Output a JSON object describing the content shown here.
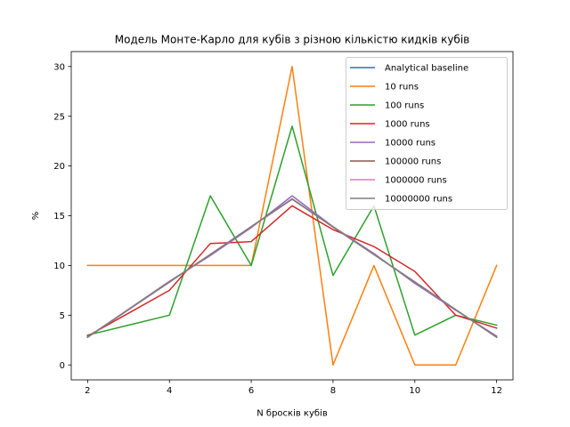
{
  "chart_data": {
    "type": "line",
    "title": "Модель Монте-Карло для кубів з різною кількістю кидків кубів",
    "xlabel": "N бросків кубів",
    "ylabel": "%",
    "xlim": [
      1.6,
      12.4
    ],
    "ylim": [
      -1.5,
      31.5
    ],
    "xticks": [
      2,
      4,
      6,
      8,
      10,
      12
    ],
    "yticks": [
      0,
      5,
      10,
      15,
      20,
      25,
      30
    ],
    "grid": false,
    "legend_position": "top-right",
    "x": [
      2,
      3,
      4,
      5,
      6,
      7,
      8,
      9,
      10,
      11,
      12
    ],
    "series": [
      {
        "name": "Analytical baseline",
        "color": "#1f77b4",
        "values": [
          2.78,
          5.56,
          8.33,
          11.11,
          13.89,
          16.67,
          13.89,
          11.11,
          8.33,
          5.56,
          2.78
        ]
      },
      {
        "name": "10 runs",
        "color": "#ff7f0e",
        "values": [
          10,
          10,
          10,
          10,
          10,
          30,
          0,
          10,
          0,
          0,
          10
        ]
      },
      {
        "name": "100 runs",
        "color": "#2ca02c",
        "values": [
          3,
          4,
          5,
          17,
          10,
          24,
          9,
          16,
          3,
          5,
          4
        ]
      },
      {
        "name": "1000 runs",
        "color": "#d62728",
        "values": [
          2.9,
          5.2,
          7.5,
          12.2,
          12.4,
          16.0,
          13.6,
          11.9,
          9.4,
          5.0,
          3.7
        ]
      },
      {
        "name": "10000 runs",
        "color": "#9467bd",
        "values": [
          2.8,
          5.6,
          8.4,
          11.0,
          13.8,
          17.0,
          13.9,
          11.2,
          8.2,
          5.5,
          2.9
        ]
      },
      {
        "name": "100000 runs",
        "color": "#8c564b",
        "values": [
          2.8,
          5.55,
          8.35,
          11.1,
          13.9,
          16.7,
          13.85,
          11.1,
          8.35,
          5.55,
          2.8
        ]
      },
      {
        "name": "1000000 runs",
        "color": "#e377c2",
        "values": [
          2.78,
          5.56,
          8.33,
          11.11,
          13.89,
          16.67,
          13.89,
          11.11,
          8.33,
          5.56,
          2.78
        ]
      },
      {
        "name": "10000000 runs",
        "color": "#7f7f7f",
        "values": [
          2.78,
          5.56,
          8.33,
          11.11,
          13.89,
          16.67,
          13.89,
          11.11,
          8.33,
          5.56,
          2.78
        ]
      }
    ]
  }
}
